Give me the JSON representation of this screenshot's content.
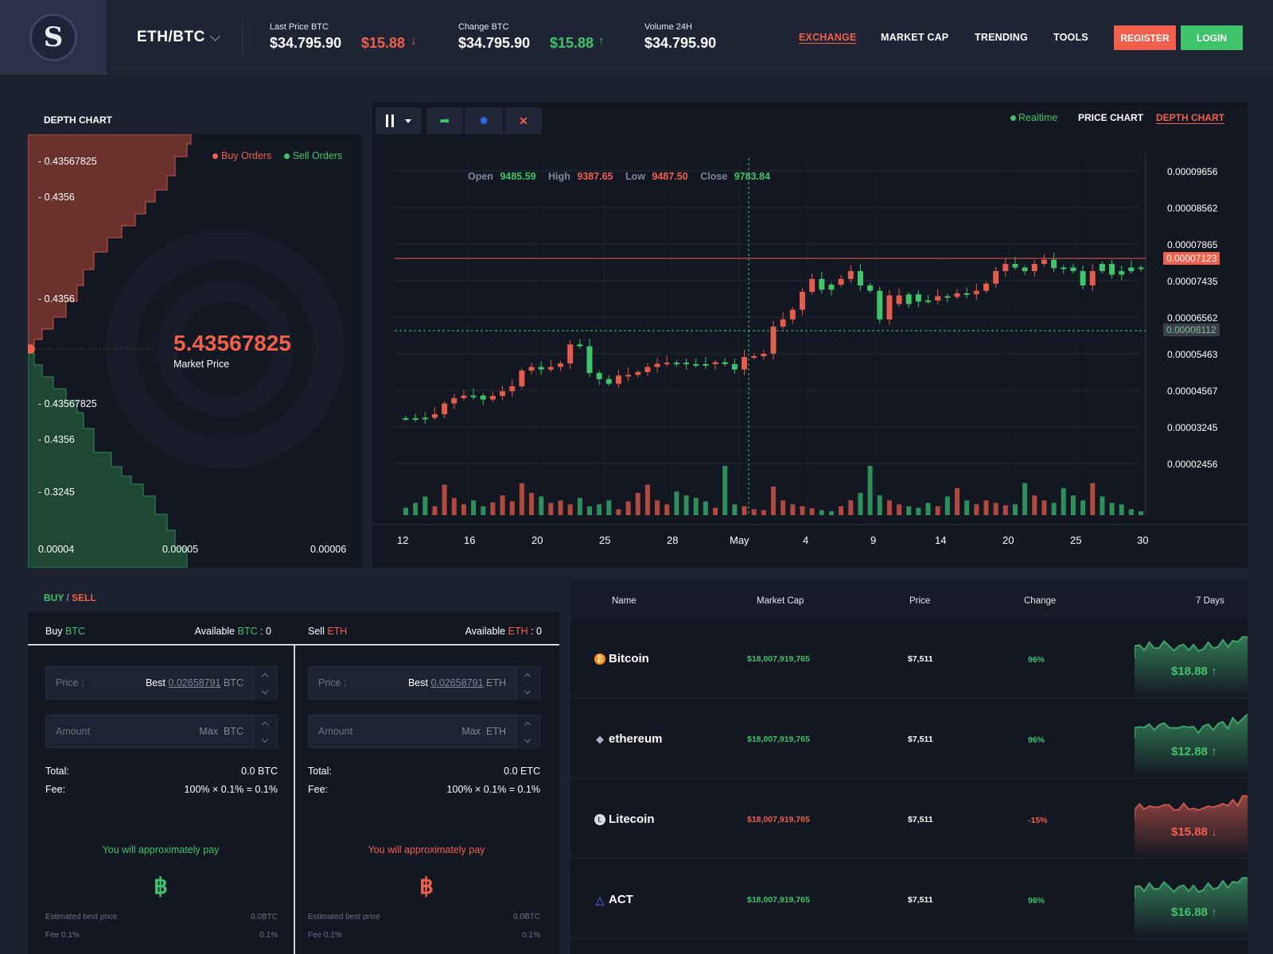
{
  "header": {
    "pair": "ETH/BTC",
    "last_price_label": "Last Price BTC",
    "last_price_value": "$34.795.90",
    "last_price_change": "$15.88",
    "last_price_arrow": "↓",
    "change_label": "Change BTC",
    "change_value": "$34.795.90",
    "change_change": "$15.88",
    "change_arrow": "↑",
    "volume_label": "Volume 24H",
    "volume_value": "$34.795.90",
    "nav": [
      "EXCHANGE",
      "MARKET CAP",
      "TRENDING",
      "TOOLS"
    ],
    "register": "REGISTER",
    "login": "LOGIN",
    "colors": {
      "accent_red": "#f0604d",
      "accent_green": "#3fc46b"
    }
  },
  "depth": {
    "title": "DEPTH CHART",
    "legend_buy": "Buy Orders",
    "legend_sell": "Sell Orders",
    "labels_top": [
      "- 0.43567825",
      "- 0.4356",
      "- 0.4356"
    ],
    "labels_bottom": [
      "- 0.43567825",
      "- 0.4356",
      "- 0.3245"
    ],
    "x_labels": [
      "0.00004",
      "0.00005",
      "0.00006"
    ],
    "market_price": "5.43567825",
    "market_price_label": "Market Price"
  },
  "price_chart": {
    "realtime": "Realtime",
    "tab_price": "PRICE CHART",
    "tab_depth": "DEPTH CHART",
    "ohlc": {
      "open_label": "Open",
      "open": "9485.59",
      "high_label": "High",
      "high": "9387.65",
      "low_label": "Low",
      "low": "9487.50",
      "close_label": "Close",
      "close": "9783.84"
    },
    "current_price_tag": "0.00007123",
    "crosshair_tag": "0.00008112",
    "tool_icons": [
      "candlestick-icon",
      "chevron-down-icon",
      "share-icon",
      "settings-icon",
      "fullscreen-icon"
    ]
  },
  "chart_data": {
    "type": "candlestick",
    "y_ticks": [
      "0.00009656",
      "0.00008562",
      "0.00007865",
      "0.00007435",
      "0.00006562",
      "0.00005463",
      "0.00004567",
      "0.00003245",
      "0.00002456"
    ],
    "x_ticks": [
      "12",
      "16",
      "20",
      "25",
      "28",
      "May",
      "4",
      "9",
      "14",
      "20",
      "25",
      "30"
    ],
    "close": [
      2.29e-05,
      2.29e-05,
      2.3e-05,
      2.4e-05,
      2.7e-05,
      2.85e-05,
      2.92e-05,
      2.92e-05,
      2.81e-05,
      2.91e-05,
      3.04e-05,
      3.18e-05,
      3.62e-05,
      3.72e-05,
      3.65e-05,
      3.72e-05,
      3.82e-05,
      4.35e-05,
      4.3e-05,
      3.55e-05,
      3.38e-05,
      3.25e-05,
      3.48e-05,
      3.5e-05,
      3.58e-05,
      3.72e-05,
      3.81e-05,
      3.84e-05,
      3.84e-05,
      3.8e-05,
      3.77e-05,
      3.8e-05,
      3.85e-05,
      3.8e-05,
      3.65e-05,
      4e-05,
      4.02e-05,
      4.09e-05,
      4.85e-05,
      5.05e-05,
      5.32e-05,
      5.82e-05,
      6.18e-05,
      5.88e-05,
      6.02e-05,
      6.18e-05,
      6.4e-05,
      6e-05,
      5.85e-05,
      5.05e-05,
      5.72e-05,
      5.48e-05,
      5.75e-05,
      5.55e-05,
      5.58e-05,
      5.7e-05,
      5.68e-05,
      5.78e-05,
      5.75e-05,
      5.85e-05,
      6.05e-05,
      6.4e-05,
      6.6e-05,
      6.5e-05,
      6.4e-05,
      6.6e-05,
      6.72e-05,
      6.48e-05,
      6.5e-05,
      6.4e-05,
      6e-05,
      6.4e-05,
      6.6e-05,
      6.3e-05,
      6.4e-05,
      6.5e-05,
      6.5e-05
    ],
    "direction": [
      "up",
      "up",
      "up",
      "down",
      "down",
      "down",
      "down",
      "up",
      "up",
      "down",
      "down",
      "down",
      "down",
      "down",
      "up",
      "down",
      "down",
      "down",
      "up",
      "up",
      "up",
      "up",
      "down",
      "down",
      "down",
      "down",
      "down",
      "down",
      "up",
      "up",
      "up",
      "up",
      "down",
      "up",
      "up",
      "down",
      "down",
      "down",
      "down",
      "down",
      "down",
      "down",
      "down",
      "up",
      "up",
      "down",
      "down",
      "up",
      "up",
      "up",
      "down",
      "down",
      "up",
      "up",
      "up",
      "down",
      "up",
      "down",
      "up",
      "down",
      "down",
      "down",
      "down",
      "up",
      "up",
      "down",
      "down",
      "up",
      "up",
      "up",
      "up",
      "down",
      "up",
      "up",
      "up",
      "up",
      "up"
    ],
    "volume": [
      0.15,
      0.25,
      0.38,
      0.18,
      0.62,
      0.35,
      0.22,
      0.3,
      0.18,
      0.26,
      0.4,
      0.28,
      0.65,
      0.45,
      0.38,
      0.25,
      0.3,
      0.22,
      0.35,
      0.18,
      0.22,
      0.3,
      0.12,
      0.28,
      0.45,
      0.62,
      0.3,
      0.22,
      0.48,
      0.4,
      0.35,
      0.28,
      0.15,
      1.0,
      0.22,
      0.18,
      0.12,
      0.1,
      0.58,
      0.3,
      0.22,
      0.18,
      0.14,
      0.1,
      0.08,
      0.18,
      0.3,
      0.45,
      1.0,
      0.4,
      0.3,
      0.22,
      0.18,
      0.15,
      0.25,
      0.18,
      0.38,
      0.55,
      0.3,
      0.22,
      0.3,
      0.25,
      0.2,
      0.22,
      0.65,
      0.4,
      0.3,
      0.25,
      0.55,
      0.4,
      0.3,
      0.65,
      0.38,
      0.25,
      0.22,
      0.12,
      0.08
    ]
  },
  "buy_sell": {
    "title_buy": "BUY",
    "title_sep": " / ",
    "title_sell": "SELL",
    "buy": {
      "label": "Buy",
      "currency": "BTC",
      "available_label": "Available",
      "available_currency": "BTC",
      "available_value": " : 0",
      "price_ph": "Price :",
      "best": "Best",
      "best_value": "0.02658791",
      "unit": "BTC",
      "amount_ph": "Amount",
      "max": "Max",
      "total_label": "Total:",
      "total_value": "0.0 BTC",
      "fee_label": "Fee:",
      "fee_value": "100% × 0.1% = 0.1%",
      "approx": "You will approximately pay",
      "symbol": "฿",
      "est_label": "Estimated best price",
      "est_value": "0.0BTC",
      "fee_small_label": "Fee 0.1%",
      "fee_small_value": "0.1%"
    },
    "sell": {
      "label": "Sell",
      "currency": "ETH",
      "available_label": "Available",
      "available_currency": "ETH",
      "available_value": " : 0",
      "price_ph": "Price :",
      "best": "Best",
      "best_value": "0.02658791",
      "unit": "ETH",
      "amount_ph": "Amount",
      "max": "Max",
      "total_label": "Total:",
      "total_value": "0.0 ETC",
      "fee_label": "Fee:",
      "fee_value": "100% × 0.1% = 0.1%",
      "approx": "You will approximately pay",
      "symbol": "฿",
      "est_label": "Estimated best price",
      "est_value": "0.0BTC",
      "fee_small_label": "Fee 0.1%",
      "fee_small_value": "0.1%"
    }
  },
  "market": {
    "headers": [
      "Name",
      "Market Cap",
      "Price",
      "Change",
      "7 Days"
    ],
    "rows": [
      {
        "name": "Bitcoin",
        "icon": "bitcoin-icon",
        "cap": "$18,007,919,765",
        "price": "$7,511",
        "change": "96%",
        "spark": "$18.88",
        "arrow": "↑",
        "trend": "up"
      },
      {
        "name": "ethereum",
        "icon": "ethereum-icon",
        "cap": "$18,007,919,765",
        "price": "$7,511",
        "change": "96%",
        "spark": "$12.88",
        "arrow": "↑",
        "trend": "up"
      },
      {
        "name": "Litecoin",
        "icon": "litecoin-icon",
        "cap": "$18,007,919,765",
        "price": "$7,511",
        "change": "-15%",
        "spark": "$15.88",
        "arrow": "↓",
        "trend": "down"
      },
      {
        "name": "ACT",
        "icon": "act-icon",
        "cap": "$18,007,919,765",
        "price": "$7,511",
        "change": "96%",
        "spark": "$16.88",
        "arrow": "↑",
        "trend": "up"
      }
    ]
  }
}
